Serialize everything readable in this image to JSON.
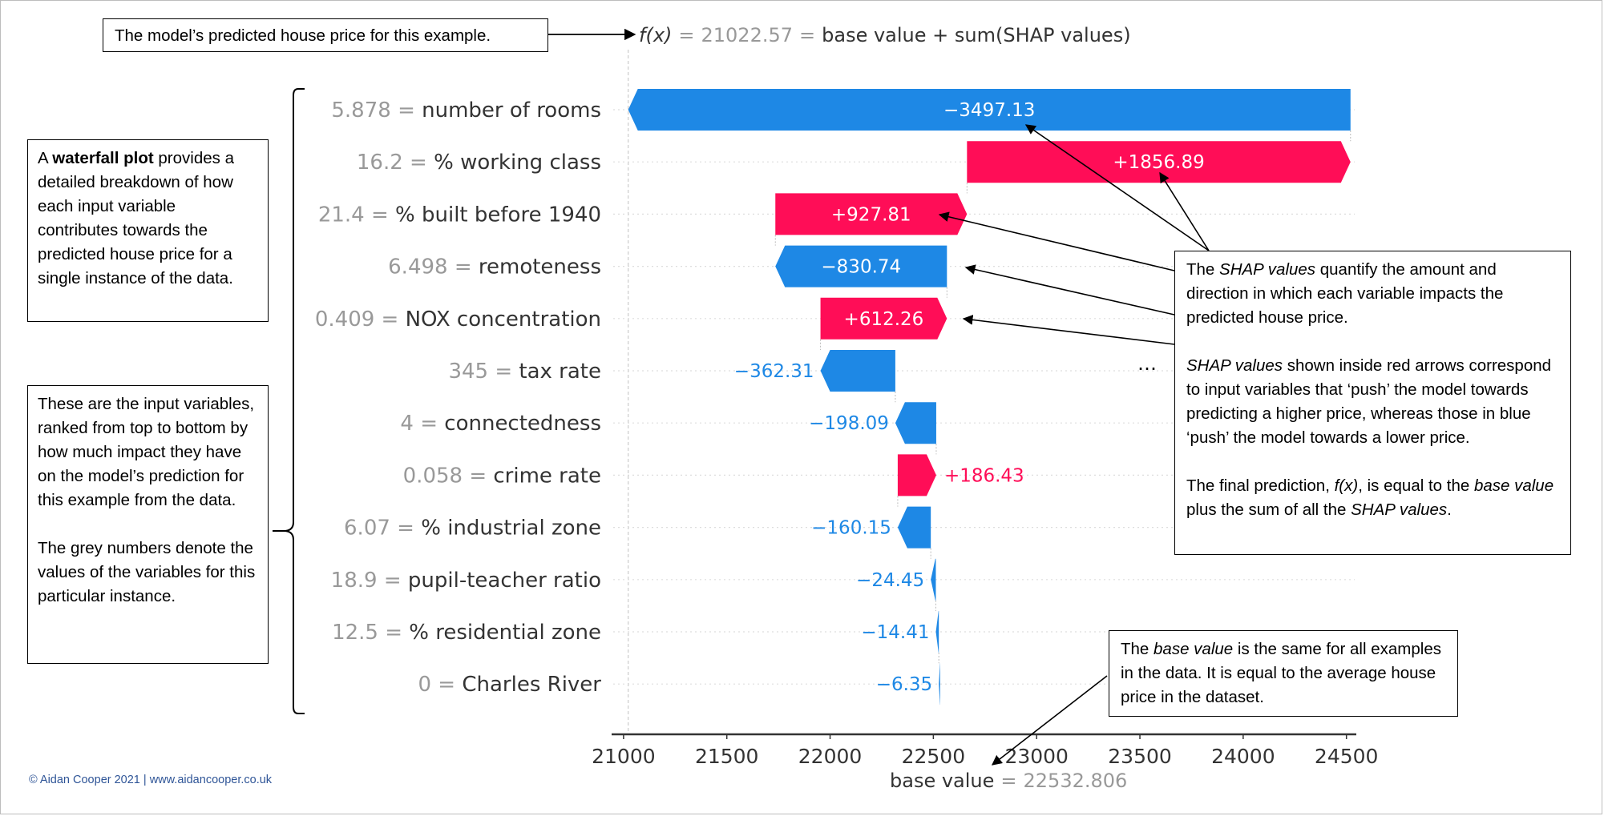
{
  "chart_data": {
    "type": "waterfall",
    "fx": "21022.57",
    "fx_suffix": "base value + sum(SHAP values)",
    "base_value": 22532.806,
    "base_value_text": "22532.806",
    "xlim": [
      20950,
      24540
    ],
    "xticks": [
      21000,
      21500,
      22000,
      22500,
      23000,
      23500,
      24000,
      24500
    ],
    "features": [
      {
        "value": "5.878",
        "name": "number of rooms",
        "shap": -3497.13,
        "label": "−3497.13"
      },
      {
        "value": "16.2",
        "name": "% working class",
        "shap": 1856.89,
        "label": "+1856.89"
      },
      {
        "value": "21.4",
        "name": "% built before 1940",
        "shap": 927.81,
        "label": "+927.81"
      },
      {
        "value": "6.498",
        "name": "remoteness",
        "shap": -830.74,
        "label": "−830.74"
      },
      {
        "value": "0.409",
        "name": "NOX concentration",
        "shap": 612.26,
        "label": "+612.26"
      },
      {
        "value": "345",
        "name": "tax rate",
        "shap": -362.31,
        "label": "−362.31"
      },
      {
        "value": "4",
        "name": "connectedness",
        "shap": -198.09,
        "label": "−198.09"
      },
      {
        "value": "0.058",
        "name": "crime rate",
        "shap": 186.43,
        "label": "+186.43"
      },
      {
        "value": "6.07",
        "name": "% industrial zone",
        "shap": -160.15,
        "label": "−160.15"
      },
      {
        "value": "18.9",
        "name": "pupil-teacher ratio",
        "shap": -24.45,
        "label": "−24.45"
      },
      {
        "value": "12.5",
        "name": "% residential zone",
        "shap": -14.41,
        "label": "−14.41"
      },
      {
        "value": "0",
        "name": "Charles River",
        "shap": -6.35,
        "label": "−6.35"
      }
    ],
    "colors": {
      "positive": "#ff0d57",
      "negative": "#1e88e5",
      "value_gray": "#999999",
      "name_dark": "#333333"
    }
  },
  "annotations": {
    "top": "The model’s predicted house price for this example.",
    "waterfall": {
      "pre": "A ",
      "bold": "waterfall plot",
      "post": " provides a detailed breakdown of how each input variable contributes towards the predicted house price for a single instance of the data."
    },
    "variables_1": "These are the input variables, ranked from top to bottom by how much impact they have on the model’s prediction for this example from the data.",
    "variables_2": "The grey numbers denote the values of the variables for this particular instance.",
    "shap_1": {
      "a": "The ",
      "b": "SHAP values",
      "c": " quantify the amount and direction in which each variable impacts the predicted house price."
    },
    "shap_2": {
      "a": "SHAP values",
      "b": " shown inside red arrows correspond to input variables that ‘push’ the model towards predicting a higher price, whereas those in blue ‘push’ the model towards a lower price."
    },
    "shap_3": {
      "a": "The final prediction, ",
      "b": "f(x)",
      "c": ", is equal to the ",
      "d": "base value",
      "e": " plus the sum of all the ",
      "f": "SHAP values",
      "g": "."
    },
    "base": {
      "a": "The ",
      "b": "base value",
      "c": " is the same for all examples in the data. It is equal to the average house price in the dataset."
    },
    "ellipsis": "…",
    "base_label": "base value",
    "equals": "=",
    "fx_italic": "f(x)",
    "credit": "© Aidan Cooper 2021 | www.aidancooper.co.uk"
  }
}
